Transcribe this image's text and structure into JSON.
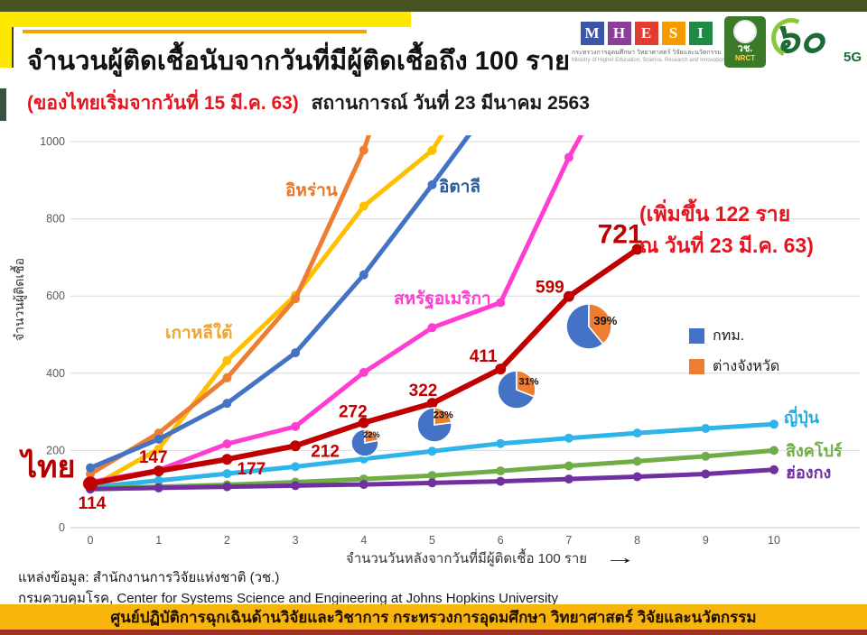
{
  "header": {
    "title": "จำนวนผู้ติดเชื้อนับจากวันที่มีผู้ติดเชื้อถึง 100 ราย",
    "subtitle_red": "(ของไทยเริ่มจากวันที่ 15 มี.ค. 63)",
    "subtitle_black": "สถานการณ์ วันที่ 23 มีนาคม 2563",
    "logos": {
      "mhesi_letters": [
        "M",
        "H",
        "E",
        "S",
        "I"
      ],
      "mhesi_thai": "กระทรวงการอุดมศึกษา วิทยาศาสตร์ วิจัยและนวัตกรรม",
      "mhesi_eng": "Ministry of Higher Education, Science, Research and Innovation",
      "nrct_thai": "วช.",
      "nrct_eng": "NRCT",
      "sixty_glyph": "๖๐",
      "fiveg": "5G"
    }
  },
  "chart_data": {
    "type": "line",
    "x": [
      0,
      1,
      2,
      3,
      4,
      5,
      6,
      7,
      8,
      9,
      10
    ],
    "xlabel": "จำนวนวันหลังจากวันที่มีผู้ติดเชื้อ 100 ราย",
    "ylabel": "จำนวนผู้ติดเชื้อ",
    "ylim": [
      0,
      1000
    ],
    "yticks": [
      0,
      200,
      400,
      600,
      800,
      1000
    ],
    "grid": true,
    "series": [
      {
        "key": "thailand",
        "label": "ไทย",
        "color": "#C00000",
        "label_color": "#B00000",
        "values": [
          114,
          147,
          177,
          212,
          272,
          322,
          411,
          599,
          721
        ],
        "point_labels": true
      },
      {
        "key": "south-korea",
        "label": "เกาหลีใต้",
        "color": "#FFC000",
        "label_color": "#EFA532",
        "values": [
          104,
          204,
          433,
          602,
          833,
          977,
          1261
        ]
      },
      {
        "key": "iran",
        "label": "อิหร่าน",
        "color": "#ED7D31",
        "label_color": "#E87728",
        "values": [
          139,
          245,
          388,
          593,
          978,
          1501
        ]
      },
      {
        "key": "italy",
        "label": "อิตาลี",
        "color": "#4472C4",
        "label_color": "#2E5B9B",
        "values": [
          155,
          229,
          322,
          453,
          655,
          888,
          1128
        ]
      },
      {
        "key": "usa",
        "label": "สหรัฐอเมริกา",
        "color": "#FF3DD2",
        "label_color": "#FF3DD2",
        "values": [
          118,
          149,
          217,
          262,
          402,
          518,
          583,
          959,
          1281
        ]
      },
      {
        "key": "japan",
        "label": "ญี่ปุ่น",
        "color": "#2FB4E9",
        "label_color": "#29ABE2",
        "values": [
          105,
          122,
          140,
          158,
          178,
          198,
          218,
          232,
          245,
          257,
          268
        ]
      },
      {
        "key": "singapore",
        "label": "สิงคโปร์",
        "color": "#70AD47",
        "label_color": "#70AD47",
        "values": [
          102,
          106,
          111,
          118,
          126,
          135,
          147,
          160,
          172,
          185,
          200
        ]
      },
      {
        "key": "hong-kong",
        "label": "ฮ่องกง",
        "color": "#7030A0",
        "label_color": "#7030A0",
        "values": [
          100,
          103,
          106,
          109,
          112,
          116,
          120,
          126,
          132,
          139,
          150
        ]
      }
    ],
    "annotation": [
      "(เพิ่มขึ้น 122 ราย",
      "ณ วันที่ 23 มี.ค. 63)"
    ],
    "pies": [
      {
        "share_pct": 22,
        "label": "22%"
      },
      {
        "share_pct": 23,
        "label": "23%"
      },
      {
        "share_pct": 31,
        "label": "31%"
      },
      {
        "share_pct": 39,
        "label": "39%"
      }
    ],
    "legend": [
      {
        "label": "กทม.",
        "color": "#4472C4"
      },
      {
        "label": "ต่างจังหวัด",
        "color": "#ED7D31"
      }
    ],
    "legend_position": "right-middle"
  },
  "icons": {
    "arrow_right": "→"
  },
  "source": [
    "แหล่งข้อมูล: สำนักงานการวิจัยแห่งชาติ (วช.)",
    "กรมควบคุมโรค, Center for Systems Science and Engineering at Johns Hopkins University"
  ],
  "footer": "ศูนย์ปฏิบัติการฉุกเฉินด้านวิจัยและวิชาการ กระทรวงการอุดมศึกษา วิทยาศาสตร์ วิจัยและนวัตกรรม",
  "colors": {
    "top_bar": "#46521F",
    "header_yellow": "#FFE800",
    "header_rule": "#F0A500",
    "footer_gold": "#F7B50C",
    "footer_strip": "#A03123",
    "annotation_red": "#E8131D",
    "value_label_red": "#C00000",
    "grid": "#D9D9D9",
    "tick": "#595959"
  }
}
